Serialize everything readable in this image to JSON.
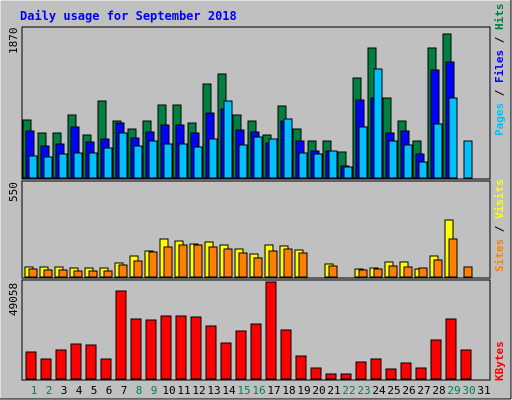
{
  "title": "Daily usage for September 2018",
  "colors": {
    "background": "#C0C0C0",
    "border_dark": "#808080",
    "title": "#0000FF",
    "hits": "#008040",
    "files": "#0000FF",
    "pages": "#00C0FF",
    "visits": "#FFFF00",
    "sites": "#FF8000",
    "kbytes": "#FF0000",
    "weekend_label": "#00805C",
    "weekday_label": "#000000"
  },
  "legends": {
    "top": [
      {
        "text": "Pages",
        "color": "#00C0FF"
      },
      {
        "text": " / ",
        "color": "#000000"
      },
      {
        "text": "Files",
        "color": "#0000FF"
      },
      {
        "text": " / ",
        "color": "#000000"
      },
      {
        "text": "Hits",
        "color": "#008040"
      }
    ],
    "mid": [
      {
        "text": "Sites",
        "color": "#FF8000"
      },
      {
        "text": " / ",
        "color": "#000000"
      },
      {
        "text": "Visits",
        "color": "#FFFF00"
      }
    ],
    "bottom": [
      {
        "text": "KBytes",
        "color": "#FF0000"
      }
    ]
  },
  "chart_data": {
    "type": "bar",
    "title": "Daily usage for September 2018",
    "categories": [
      "1",
      "2",
      "3",
      "4",
      "5",
      "6",
      "7",
      "8",
      "9",
      "10",
      "11",
      "12",
      "13",
      "14",
      "15",
      "16",
      "17",
      "18",
      "19",
      "20",
      "21",
      "22",
      "23",
      "24",
      "25",
      "26",
      "27",
      "28",
      "29",
      "30",
      "31"
    ],
    "weekend_days": [
      "1",
      "2",
      "8",
      "9",
      "15",
      "16",
      "22",
      "23",
      "29",
      "30"
    ],
    "panels": [
      {
        "name": "hits-files-pages",
        "ymax_label": "1870",
        "ymax": 1870,
        "series": [
          {
            "name": "Hits",
            "values": [
              732,
              565,
              565,
              787,
              543,
              961,
              710,
              616,
              718,
              916,
              916,
              689,
              1176,
              1302,
              787,
              718,
              541,
              903,
              616,
              462,
              462,
              322,
              1260,
              1632,
              1001,
              718,
              462,
              1632,
              1807,
              0,
              0
            ]
          },
          {
            "name": "Files",
            "values": [
              594,
              397,
              426,
              646,
              453,
              489,
              685,
              504,
              572,
              662,
              662,
              568,
              810,
              870,
              604,
              572,
              437,
              716,
              470,
              342,
              342,
              149,
              981,
              1000,
              563,
              590,
              300,
              1354,
              1462,
              0,
              0
            ]
          },
          {
            "name": "Pages",
            "values": [
              276,
              266,
              306,
              316,
              316,
              380,
              561,
              403,
              462,
              426,
              426,
              386,
              489,
              970,
              418,
              515,
              489,
              740,
              316,
              306,
              342,
              142,
              643,
              1364,
              460,
              414,
              204,
              673,
              1001,
              460,
              0
            ]
          }
        ]
      },
      {
        "name": "visits-sites",
        "ymax_label": "550",
        "ymax": 550,
        "series": [
          {
            "name": "Visits",
            "values": [
              62,
              62,
              62,
              55,
              55,
              55,
              84,
              127,
              156,
              223,
              210,
              198,
              205,
              188,
              163,
              137,
              187,
              182,
              159,
              0,
              76,
              0,
              49,
              56,
              87,
              87,
              47,
              127,
              335,
              0,
              0
            ]
          },
          {
            "name": "Sites",
            "values": [
              47,
              39,
              39,
              36,
              36,
              36,
              71,
              94,
              146,
              178,
              188,
              187,
              179,
              163,
              139,
              112,
              155,
              166,
              139,
              0,
              64,
              0,
              39,
              45,
              68,
              59,
              52,
              98,
              226,
              60,
              0
            ]
          }
        ]
      },
      {
        "name": "kbytes",
        "ymax_label": "49058",
        "ymax": 49058,
        "series": [
          {
            "name": "KBytes",
            "values": [
              22000,
              16700,
              24000,
              28500,
              28000,
              16500,
              72000,
              49000,
              48500,
              51500,
              51500,
              51000,
              43000,
              29600,
              39000,
              45000,
              79000,
              40000,
              19000,
              9000,
              4000,
              4000,
              14000,
              16000,
              8000,
              13000,
              9000,
              32000,
              49000,
              24000,
              0
            ]
          }
        ]
      }
    ]
  }
}
